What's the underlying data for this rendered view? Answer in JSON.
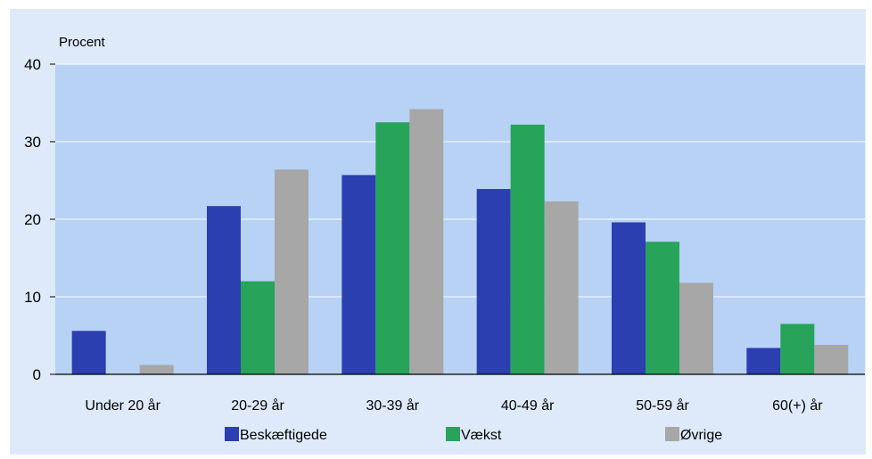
{
  "chart_data": {
    "type": "bar",
    "ylabel": "Procent",
    "ylim": [
      0,
      40
    ],
    "yticks": [
      0,
      10,
      20,
      30,
      40
    ],
    "grid": true,
    "legend_position": "bottom",
    "categories": [
      "Under 20 år",
      "20-29 år",
      "30-39 år",
      "40-49 år",
      "50-59 år",
      "60(+) år"
    ],
    "series": [
      {
        "name": "Beskæftigede",
        "color": "#2b3fb0",
        "values": [
          5.6,
          21.7,
          25.7,
          23.9,
          19.6,
          3.4
        ]
      },
      {
        "name": "Vækst",
        "color": "#27a35a",
        "values": [
          0,
          12.0,
          32.5,
          32.2,
          17.1,
          6.5
        ]
      },
      {
        "name": "Øvrige",
        "color": "#a7a7a7",
        "values": [
          1.2,
          26.4,
          34.2,
          22.3,
          11.8,
          3.8
        ]
      }
    ]
  },
  "colors": {
    "plot_background": "#b7d2f5",
    "panel_background": "#deeafa",
    "gridline": "#ffffff"
  }
}
